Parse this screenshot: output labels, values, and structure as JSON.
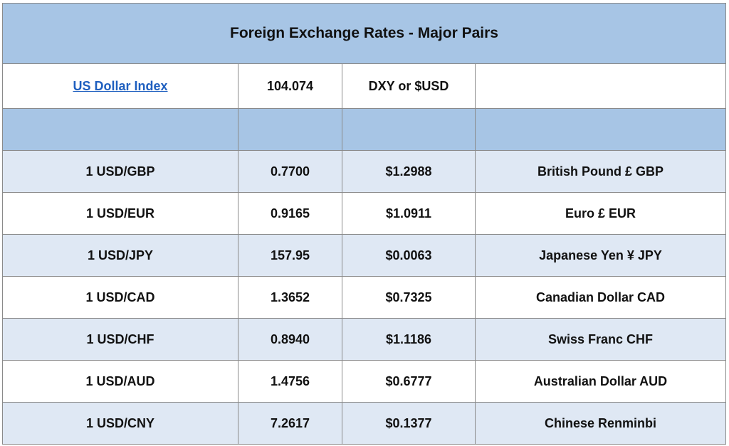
{
  "title": "Foreign Exchange Rates - Major Pairs",
  "index": {
    "link_label": "US Dollar Index",
    "value": "104.074",
    "symbol": "DXY or $USD",
    "extra": ""
  },
  "spacer": [
    "",
    "",
    "",
    ""
  ],
  "rows": [
    {
      "pair": "1 USD/GBP",
      "rate": "0.7700",
      "usd_value": "$1.2988",
      "currency": "British Pound £ GBP"
    },
    {
      "pair": "1 USD/EUR",
      "rate": "0.9165",
      "usd_value": "$1.0911",
      "currency": "Euro £ EUR"
    },
    {
      "pair": "1 USD/JPY",
      "rate": "157.95",
      "usd_value": "$0.0063",
      "currency": "Japanese Yen ¥ JPY"
    },
    {
      "pair": "1 USD/CAD",
      "rate": "1.3652",
      "usd_value": "$0.7325",
      "currency": "Canadian Dollar CAD"
    },
    {
      "pair": "1 USD/CHF",
      "rate": "0.8940",
      "usd_value": "$1.1186",
      "currency": "Swiss Franc CHF"
    },
    {
      "pair": "1 USD/AUD",
      "rate": "1.4756",
      "usd_value": "$0.6777",
      "currency": "Australian Dollar AUD"
    },
    {
      "pair": "1 USD/CNY",
      "rate": "7.2617",
      "usd_value": "$0.1377",
      "currency": "Chinese Renminbi"
    }
  ],
  "colors": {
    "header_blue": "#a7c5e5",
    "row_shade": "#dfe8f4",
    "link_blue": "#1f5fbf",
    "border": "#8a8a8a"
  }
}
